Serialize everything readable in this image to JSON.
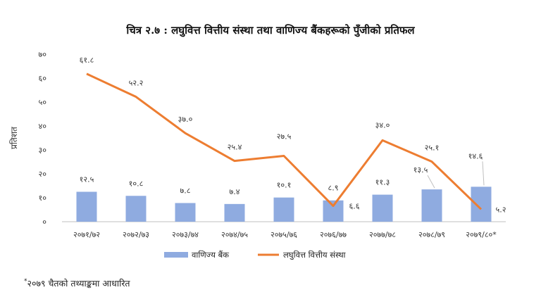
{
  "title": "चित्र २.७ : लघुवित्त वित्तीय संस्था तथा वाणिज्य बैंकहरूको पुँजीको प्रतिफल",
  "footnote_mark": "*",
  "footnote_text": "२०७९ चैतको तथ्याङ्कमा आधारित",
  "chart_data": {
    "type": "bar+line",
    "title": "चित्र २.७ : लघुवित्त वित्तीय संस्था तथा वाणिज्य बैंकहरूको पुँजीको प्रतिफल",
    "ylabel": "प्रतिशत",
    "xlabel": "",
    "ylim": [
      0,
      70
    ],
    "yticks": [
      0,
      10,
      20,
      30,
      40,
      50,
      60,
      70
    ],
    "ytick_labels": [
      "०",
      "१०",
      "२०",
      "३०",
      "४०",
      "५०",
      "६०",
      "७०"
    ],
    "categories": [
      "२०७१/७२",
      "२०७२/७३",
      "२०७३/७४",
      "२०७४/७५",
      "२०७५/७६",
      "२०७६/७७",
      "२०७७/७८",
      "२०७८/७९",
      "२०७९/८०*"
    ],
    "grid": false,
    "legend_position": "bottom",
    "series": [
      {
        "name": "वाणिज्य बैंक",
        "kind": "bar",
        "color": "#8fabe0",
        "values": [
          12.5,
          10.8,
          7.8,
          7.4,
          10.1,
          8.9,
          11.3,
          13.5,
          14.6
        ],
        "labels": [
          "१२.५",
          "१०.८",
          "७.८",
          "७.४",
          "१०.१",
          "८.९",
          "११.३",
          "१३.५",
          "१४.६"
        ]
      },
      {
        "name": "लघुवित्त वित्तीय संस्था",
        "kind": "line",
        "color": "#ed7d31",
        "values": [
          61.8,
          52.2,
          37.0,
          25.4,
          27.5,
          6.6,
          34.0,
          25.1,
          5.2
        ],
        "labels": [
          "६१.८",
          "५२.२",
          "३७.०",
          "२५.४",
          "२७.५",
          "६.६",
          "३४.०",
          "२५.१",
          "५.२"
        ]
      }
    ]
  }
}
